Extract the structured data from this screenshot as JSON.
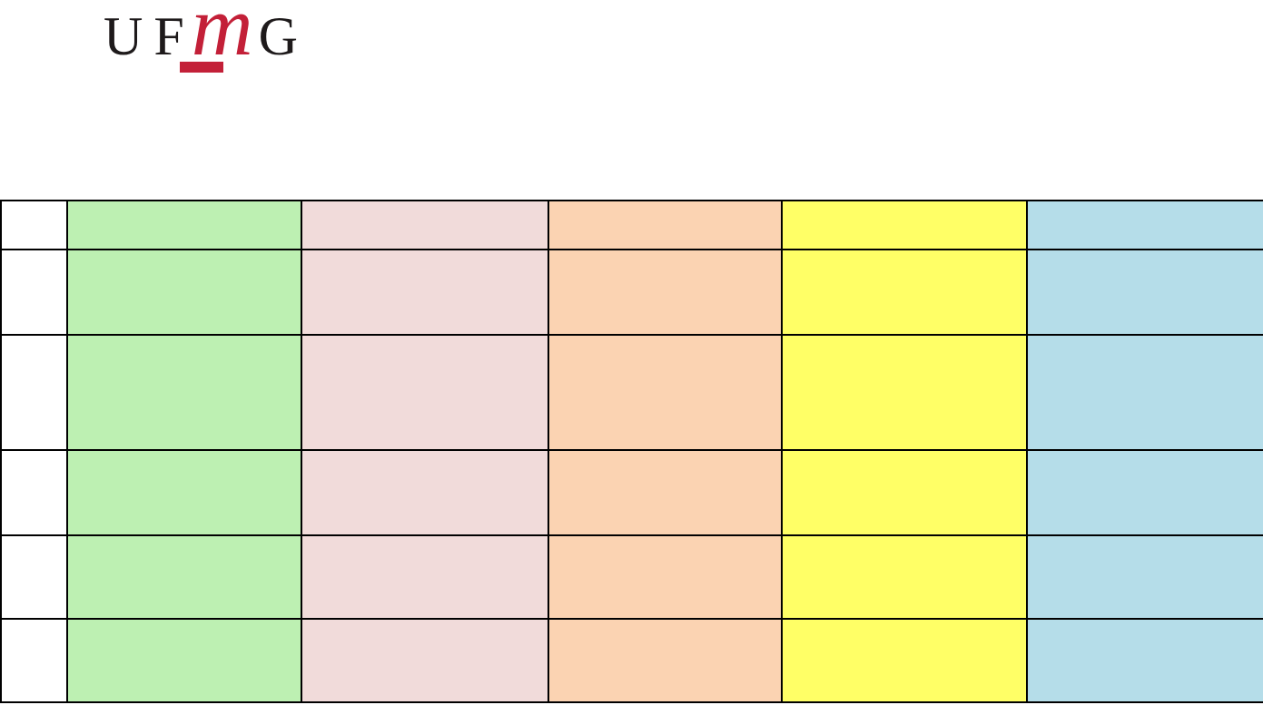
{
  "page": {
    "background_color": "#ffffff"
  },
  "logo": {
    "letter_u": "U",
    "letter_f": "F",
    "letter_m": "m",
    "letter_g": "G",
    "black_color": "#1e1a1b",
    "red_color": "#c32038"
  },
  "table": {
    "border_color": "#000000",
    "columns": [
      {
        "name": "white-column",
        "color": "#ffffff"
      },
      {
        "name": "green-column",
        "color": "#bdf0b2"
      },
      {
        "name": "pink-column",
        "color": "#f1dbda"
      },
      {
        "name": "orange-column",
        "color": "#fbd3b2"
      },
      {
        "name": "yellow-column",
        "color": "#ffff66"
      },
      {
        "name": "blue-column",
        "color": "#b5dde9"
      }
    ],
    "rows": [
      {
        "cells": [
          "",
          "",
          "",
          "",
          "",
          ""
        ]
      },
      {
        "cells": [
          "",
          "",
          "",
          "",
          "",
          ""
        ]
      },
      {
        "cells": [
          "",
          "",
          "",
          "",
          "",
          ""
        ]
      },
      {
        "cells": [
          "",
          "",
          "",
          "",
          "",
          ""
        ]
      },
      {
        "cells": [
          "",
          "",
          "",
          "",
          "",
          ""
        ]
      },
      {
        "cells": [
          "",
          "",
          "",
          "",
          "",
          ""
        ]
      }
    ]
  }
}
